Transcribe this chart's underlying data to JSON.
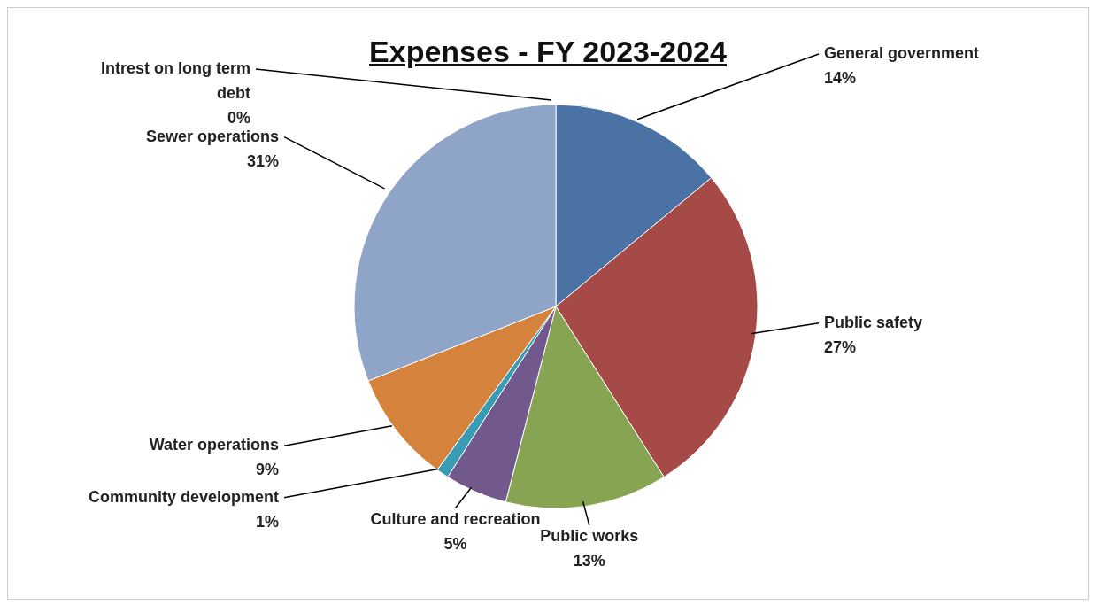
{
  "chart_data": {
    "type": "pie",
    "title": "Expenses - FY 2023-2024",
    "categories": [
      "General government",
      "Public safety",
      "Public works",
      "Culture and recreation",
      "Community development",
      "Water operations",
      "Sewer operations",
      "Intrest on long term debt"
    ],
    "values": [
      14,
      27,
      13,
      5,
      1,
      9,
      31,
      0
    ],
    "value_labels": [
      "14%",
      "27%",
      "13%",
      "5%",
      "1%",
      "9%",
      "31%",
      "0%"
    ],
    "colors": [
      "#4a72a4",
      "#a64a48",
      "#87a452",
      "#71598e",
      "#3a9bb5",
      "#d5833c",
      "#8fa5c8",
      "#c8c8c8"
    ],
    "legend": false
  }
}
